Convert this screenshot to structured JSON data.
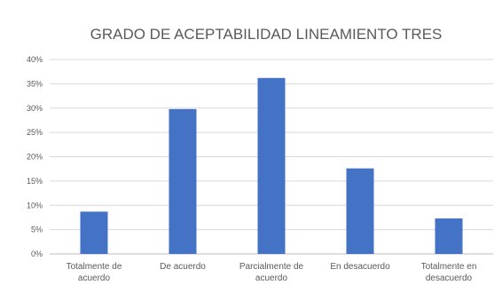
{
  "chart_data": {
    "type": "bar",
    "title": "GRADO DE ACEPTABILIDAD LINEAMIENTO TRES",
    "categories": [
      [
        "Totalmente de",
        "acuerdo"
      ],
      [
        "De acuerdo"
      ],
      [
        "Parcialmente de",
        "acuerdo"
      ],
      [
        "En desacuerdo"
      ],
      [
        "Totalmente en",
        "desacuerdo"
      ]
    ],
    "values": [
      8.7,
      29.8,
      36.2,
      17.6,
      7.3
    ],
    "ylim": [
      0,
      40
    ],
    "yticks": [
      "0%",
      "5%",
      "10%",
      "15%",
      "20%",
      "25%",
      "30%",
      "35%",
      "40%"
    ],
    "grid": true,
    "legend": "none",
    "color": "#4472c4"
  }
}
